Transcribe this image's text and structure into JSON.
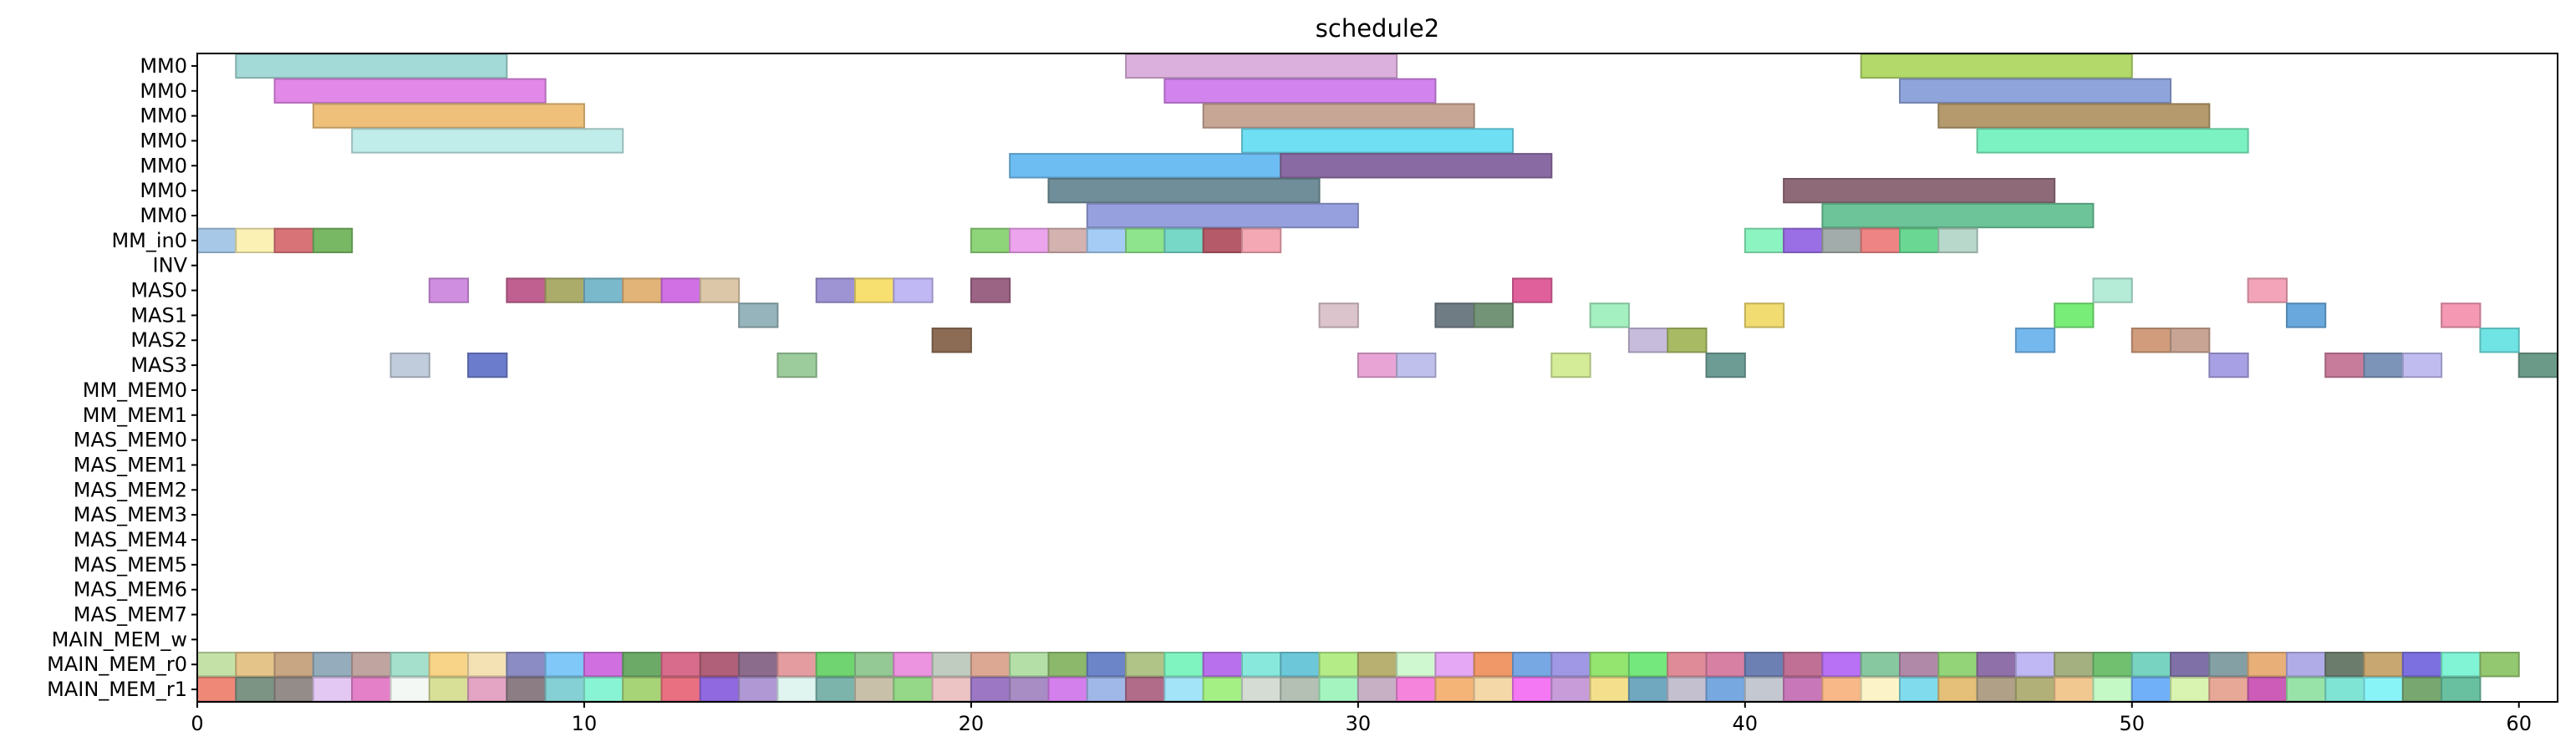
{
  "chart_data": {
    "type": "gantt",
    "title": "schedule2",
    "xlabel": "",
    "ylabel": "",
    "xlim": [
      0,
      61
    ],
    "xticks": [
      0,
      10,
      20,
      30,
      40,
      50,
      60
    ],
    "grid": false,
    "rows": [
      "MM0",
      "MM0",
      "MM0",
      "MM0",
      "MM0",
      "MM0",
      "MM0",
      "MM_in0",
      "INV",
      "MAS0",
      "MAS1",
      "MAS2",
      "MAS3",
      "MM_MEM0",
      "MM_MEM1",
      "MAS_MEM0",
      "MAS_MEM1",
      "MAS_MEM2",
      "MAS_MEM3",
      "MAS_MEM4",
      "MAS_MEM5",
      "MAS_MEM6",
      "MAS_MEM7",
      "MAIN_MEM_w",
      "MAIN_MEM_r0",
      "MAIN_MEM_r1"
    ],
    "tasks": [
      {
        "row": 0,
        "start": 1,
        "end": 8,
        "color": "#a3d9d6"
      },
      {
        "row": 0,
        "start": 24,
        "end": 31,
        "color": "#dcb0dc"
      },
      {
        "row": 0,
        "start": 43,
        "end": 50,
        "color": "#b2d96a"
      },
      {
        "row": 1,
        "start": 2,
        "end": 9,
        "color": "#e288e8"
      },
      {
        "row": 1,
        "start": 25,
        "end": 32,
        "color": "#d283ee"
      },
      {
        "row": 1,
        "start": 44,
        "end": 51,
        "color": "#8fa4da"
      },
      {
        "row": 2,
        "start": 3,
        "end": 10,
        "color": "#efc07a"
      },
      {
        "row": 2,
        "start": 26,
        "end": 33,
        "color": "#c8a696"
      },
      {
        "row": 2,
        "start": 45,
        "end": 52,
        "color": "#b49a6c"
      },
      {
        "row": 3,
        "start": 4,
        "end": 11,
        "color": "#c0ece9"
      },
      {
        "row": 3,
        "start": 27,
        "end": 34,
        "color": "#6fdff4"
      },
      {
        "row": 3,
        "start": 46,
        "end": 53,
        "color": "#7cf2c2"
      },
      {
        "row": 4,
        "start": 21,
        "end": 28,
        "color": "#6ebdf2"
      },
      {
        "row": 4,
        "start": 28,
        "end": 35,
        "color": "#8a6aa2"
      },
      {
        "row": 5,
        "start": 22,
        "end": 29,
        "color": "#6f8e99"
      },
      {
        "row": 5,
        "start": 41,
        "end": 48,
        "color": "#8e6a78"
      },
      {
        "row": 6,
        "start": 23,
        "end": 30,
        "color": "#96a0de"
      },
      {
        "row": 6,
        "start": 42,
        "end": 49,
        "color": "#6cc498"
      },
      {
        "row": 7,
        "start": 0,
        "end": 1,
        "color": "#a8c8e8"
      },
      {
        "row": 7,
        "start": 1,
        "end": 2,
        "color": "#fbf1b4"
      },
      {
        "row": 7,
        "start": 2,
        "end": 3,
        "color": "#d87478"
      },
      {
        "row": 7,
        "start": 3,
        "end": 4,
        "color": "#78b864"
      },
      {
        "row": 7,
        "start": 20,
        "end": 21,
        "color": "#8ed478"
      },
      {
        "row": 7,
        "start": 21,
        "end": 22,
        "color": "#eca4ec"
      },
      {
        "row": 7,
        "start": 22,
        "end": 23,
        "color": "#d4b2b0"
      },
      {
        "row": 7,
        "start": 23,
        "end": 24,
        "color": "#a4ccf4"
      },
      {
        "row": 7,
        "start": 24,
        "end": 25,
        "color": "#8ee48c"
      },
      {
        "row": 7,
        "start": 25,
        "end": 26,
        "color": "#78d8c8"
      },
      {
        "row": 7,
        "start": 26,
        "end": 27,
        "color": "#b45a68"
      },
      {
        "row": 7,
        "start": 27,
        "end": 28,
        "color": "#f4a8b4"
      },
      {
        "row": 7,
        "start": 40,
        "end": 41,
        "color": "#8cf4c0"
      },
      {
        "row": 7,
        "start": 41,
        "end": 42,
        "color": "#9a6ee4"
      },
      {
        "row": 7,
        "start": 42,
        "end": 43,
        "color": "#a2acaa"
      },
      {
        "row": 7,
        "start": 43,
        "end": 44,
        "color": "#ee8484"
      },
      {
        "row": 7,
        "start": 44,
        "end": 45,
        "color": "#6ad892"
      },
      {
        "row": 7,
        "start": 45,
        "end": 46,
        "color": "#b8d8cc"
      },
      {
        "row": 9,
        "start": 6,
        "end": 7,
        "color": "#d08ee0"
      },
      {
        "row": 9,
        "start": 8,
        "end": 9,
        "color": "#c06090"
      },
      {
        "row": 9,
        "start": 9,
        "end": 10,
        "color": "#acac6a"
      },
      {
        "row": 9,
        "start": 10,
        "end": 11,
        "color": "#7ab8cc"
      },
      {
        "row": 9,
        "start": 11,
        "end": 12,
        "color": "#e2b478"
      },
      {
        "row": 9,
        "start": 12,
        "end": 13,
        "color": "#d070e4"
      },
      {
        "row": 9,
        "start": 13,
        "end": 14,
        "color": "#dcc8a8"
      },
      {
        "row": 9,
        "start": 16,
        "end": 17,
        "color": "#9e94d4"
      },
      {
        "row": 9,
        "start": 17,
        "end": 18,
        "color": "#f8e070"
      },
      {
        "row": 9,
        "start": 18,
        "end": 19,
        "color": "#c0b8f4"
      },
      {
        "row": 9,
        "start": 20,
        "end": 21,
        "color": "#9c6484"
      },
      {
        "row": 9,
        "start": 34,
        "end": 35,
        "color": "#e0609c"
      },
      {
        "row": 9,
        "start": 49,
        "end": 50,
        "color": "#b4ecd8"
      },
      {
        "row": 9,
        "start": 53,
        "end": 54,
        "color": "#f4a4b8"
      },
      {
        "row": 10,
        "start": 14,
        "end": 15,
        "color": "#96b4bc"
      },
      {
        "row": 10,
        "start": 29,
        "end": 30,
        "color": "#dcc4cc"
      },
      {
        "row": 10,
        "start": 32,
        "end": 33,
        "color": "#707c84"
      },
      {
        "row": 10,
        "start": 33,
        "end": 34,
        "color": "#749478"
      },
      {
        "row": 10,
        "start": 36,
        "end": 37,
        "color": "#a4f0c0"
      },
      {
        "row": 10,
        "start": 40,
        "end": 41,
        "color": "#f0dc70"
      },
      {
        "row": 10,
        "start": 48,
        "end": 49,
        "color": "#78ee78"
      },
      {
        "row": 10,
        "start": 54,
        "end": 55,
        "color": "#68a8dc"
      },
      {
        "row": 10,
        "start": 58,
        "end": 59,
        "color": "#f498b4"
      },
      {
        "row": 11,
        "start": 19,
        "end": 20,
        "color": "#8c6c54"
      },
      {
        "row": 11,
        "start": 37,
        "end": 38,
        "color": "#c8bcdc"
      },
      {
        "row": 11,
        "start": 38,
        "end": 39,
        "color": "#a8ba64"
      },
      {
        "row": 11,
        "start": 47,
        "end": 48,
        "color": "#74b8ee"
      },
      {
        "row": 11,
        "start": 50,
        "end": 51,
        "color": "#d09c7c"
      },
      {
        "row": 11,
        "start": 51,
        "end": 52,
        "color": "#c8a494"
      },
      {
        "row": 11,
        "start": 59,
        "end": 60,
        "color": "#70e4e4"
      },
      {
        "row": 12,
        "start": 5,
        "end": 6,
        "color": "#c0ccdc"
      },
      {
        "row": 12,
        "start": 7,
        "end": 8,
        "color": "#6c7ccc"
      },
      {
        "row": 12,
        "start": 15,
        "end": 16,
        "color": "#9ccc9c"
      },
      {
        "row": 12,
        "start": 30,
        "end": 31,
        "color": "#e8a4d4"
      },
      {
        "row": 12,
        "start": 31,
        "end": 32,
        "color": "#c0c0ec"
      },
      {
        "row": 12,
        "start": 35,
        "end": 36,
        "color": "#d4ec98"
      },
      {
        "row": 12,
        "start": 39,
        "end": 40,
        "color": "#6c9c94"
      },
      {
        "row": 12,
        "start": 52,
        "end": 53,
        "color": "#a8a0e4"
      },
      {
        "row": 12,
        "start": 55,
        "end": 56,
        "color": "#c87c9c"
      },
      {
        "row": 12,
        "start": 56,
        "end": 57,
        "color": "#7c94b8"
      },
      {
        "row": 12,
        "start": 57,
        "end": 58,
        "color": "#c0bcf0"
      },
      {
        "row": 12,
        "start": 60,
        "end": 61,
        "color": "#6c9a88"
      }
    ],
    "main_mem_r0_colors": [
      "#c4e2a8",
      "#e4c488",
      "#c8a684",
      "#94acbc",
      "#c0a4a0",
      "#a4e0cc",
      "#f8d488",
      "#f4e2b4",
      "#8c8cc4",
      "#80c8f8",
      "#d070e0",
      "#6caa68",
      "#d86c8c",
      "#b06078",
      "#8c6c8c",
      "#e49ca0",
      "#70d470",
      "#94c894",
      "#ec94e0",
      "#c0ccc0",
      "#dca894",
      "#b4e0a8",
      "#8cb86c",
      "#6c84c8",
      "#b0c488",
      "#80f4c0",
      "#b870ec",
      "#88e8dc",
      "#6cc8d8",
      "#b4ec88",
      "#b8b070",
      "#d0f8d0",
      "#e4a8f4",
      "#f09868",
      "#78a8e4",
      "#a098e4",
      "#94e470",
      "#74e87c",
      "#e08c98",
      "#d880a4",
      "#6c80b4",
      "#c07094",
      "#b870f4",
      "#88c8a0",
      "#b088a8",
      "#94d478",
      "#9070a8",
      "#c0b8f4",
      "#a4b080",
      "#70c070",
      "#78d4c0",
      "#8070a8",
      "#84a0a4",
      "#e8b078",
      "#b0ace8",
      "#6c7c6c",
      "#c8a870",
      "#7c70e0",
      "#80f4d4",
      "#94c870"
    ],
    "main_mem_r1_colors": [
      "#f08878",
      "#7c9484",
      "#948c88",
      "#e4c8f4",
      "#e480c8",
      "#f4f8f4",
      "#d8e098",
      "#e4a4c4",
      "#8c7c84",
      "#84d0d4",
      "#88f4d4",
      "#a8d478",
      "#e87080",
      "#9068e0",
      "#b098d4",
      "#e0f4f0",
      "#7cb4ac",
      "#c8c0a8",
      "#94d888",
      "#ecc4c4",
      "#9c78c4",
      "#a88cc4",
      "#d480ec",
      "#a0b8e8",
      "#b06c88",
      "#a4e4f8",
      "#a4f084",
      "#d4dcd4",
      "#b4c0b4",
      "#a4f4c0",
      "#c8b0c4",
      "#f484dc",
      "#f4b478",
      "#f4d8a8",
      "#f478f4",
      "#c89cd8",
      "#f4e08c",
      "#70a8c0",
      "#c4c0d0",
      "#78a8e0",
      "#c4c8d0",
      "#c878b8",
      "#f8b888",
      "#fcf4c8",
      "#80dcec",
      "#e4c078",
      "#b0a088",
      "#b0b078",
      "#f0c890",
      "#c4f8c4",
      "#70b0f8",
      "#d8f4b0",
      "#e8a898",
      "#cc5cb8",
      "#98e4a8",
      "#80e4d4",
      "#88f4f8",
      "#78a870",
      "#68c0a0"
    ]
  }
}
